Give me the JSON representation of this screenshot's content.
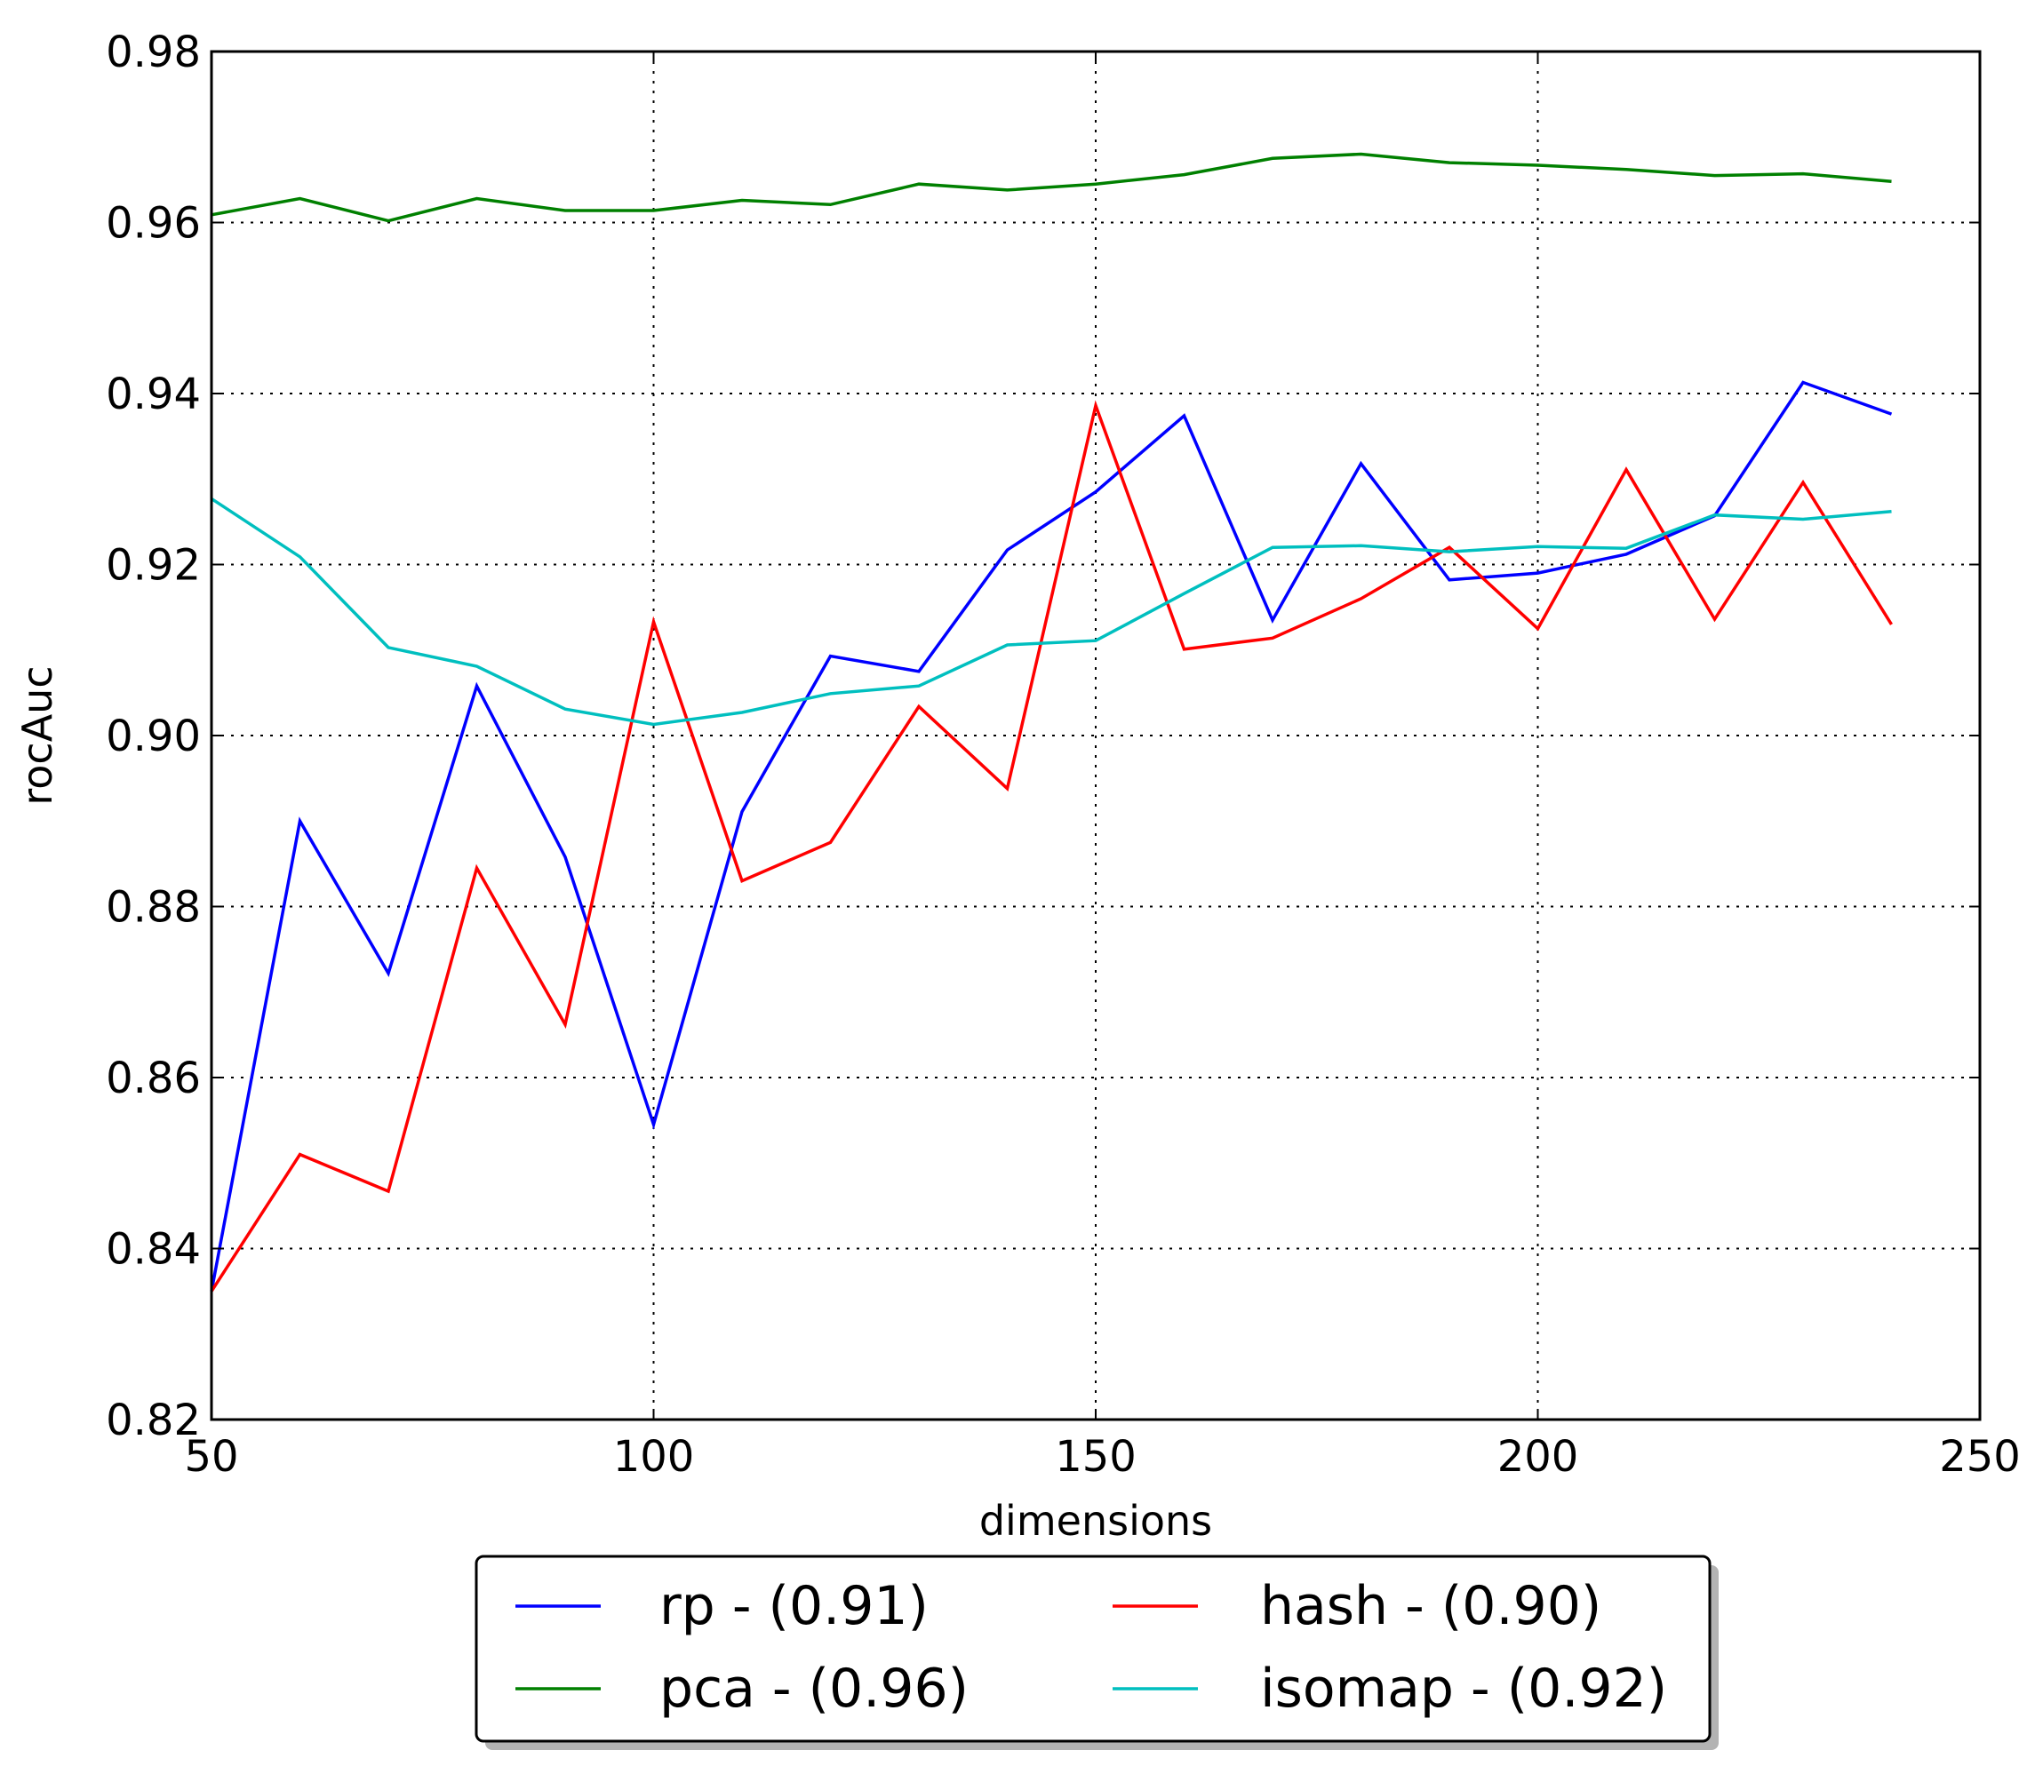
{
  "chart_data": {
    "type": "line",
    "xlabel": "dimensions",
    "ylabel": "rocAuc",
    "xlim": [
      50,
      250
    ],
    "ylim": [
      0.82,
      0.98
    ],
    "x_ticks": [
      "50",
      "100",
      "150",
      "200",
      "250"
    ],
    "y_ticks": [
      "0.82",
      "0.84",
      "0.86",
      "0.88",
      "0.90",
      "0.92",
      "0.94",
      "0.96",
      "0.98"
    ],
    "grid": true,
    "legend_position": "bottom-center",
    "x": [
      50,
      60,
      70,
      80,
      90,
      100,
      110,
      120,
      130,
      140,
      150,
      160,
      170,
      180,
      190,
      200,
      210,
      220,
      230,
      240
    ],
    "series": [
      {
        "name": "rp - (0.91)",
        "color": "#0000ff",
        "values": [
          0.835,
          0.89,
          0.8722,
          0.9058,
          0.8858,
          0.8545,
          0.8911,
          0.9093,
          0.9075,
          0.9217,
          0.9285,
          0.9374,
          0.9135,
          0.9318,
          0.9182,
          0.919,
          0.9212,
          0.9257,
          0.9413,
          0.9376
        ]
      },
      {
        "name": "hash - (0.90)",
        "color": "#ff0000",
        "values": [
          0.835,
          0.851,
          0.8467,
          0.8845,
          0.8662,
          0.9133,
          0.883,
          0.8875,
          0.9034,
          0.8938,
          0.9386,
          0.9101,
          0.9114,
          0.916,
          0.922,
          0.9125,
          0.9311,
          0.9136,
          0.9296,
          0.913
        ]
      },
      {
        "name": "pca - (0.96)",
        "color": "#008000",
        "values": [
          0.9609,
          0.9628,
          0.9602,
          0.9628,
          0.9614,
          0.9614,
          0.9626,
          0.9621,
          0.9645,
          0.9638,
          0.9645,
          0.9656,
          0.9675,
          0.968,
          0.967,
          0.9667,
          0.9662,
          0.9655,
          0.9657,
          0.9648
        ]
      },
      {
        "name": "isomap - (0.92)",
        "color": "#00bfbf",
        "values": [
          0.9277,
          0.9209,
          0.9103,
          0.9081,
          0.9031,
          0.9013,
          0.9027,
          0.9049,
          0.9058,
          0.9106,
          0.9111,
          0.9166,
          0.922,
          0.9222,
          0.9215,
          0.9221,
          0.9219,
          0.9258,
          0.9253,
          0.9262
        ]
      }
    ]
  }
}
